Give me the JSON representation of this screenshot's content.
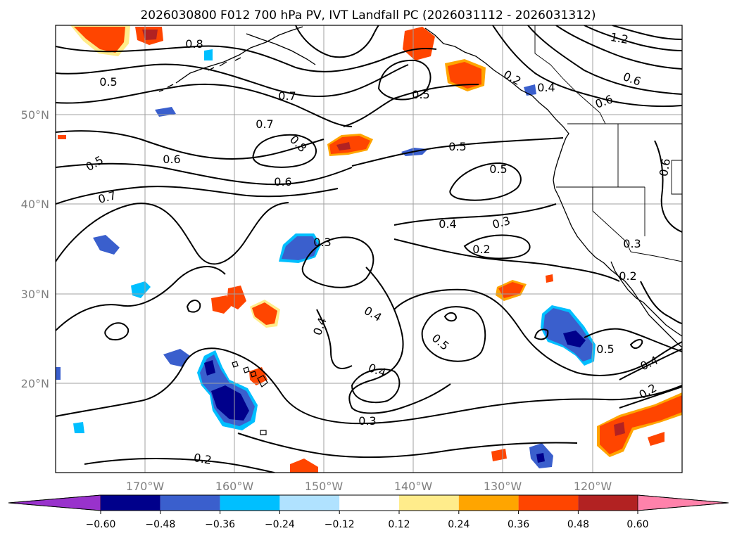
{
  "title": "2026030800 F012 700 hPa PV, IVT Landfall PC (2026031112 - 2026031312)",
  "map": {
    "lon_labels": [
      "170°W",
      "160°W",
      "150°W",
      "140°W",
      "130°W",
      "120°W"
    ],
    "lat_labels": [
      "50°N",
      "40°N",
      "30°N",
      "20°N"
    ]
  },
  "colorbar": {
    "tick_labels": [
      "−0.60",
      "−0.48",
      "−0.36",
      "−0.24",
      "−0.12",
      "0.12",
      "0.24",
      "0.36",
      "0.48",
      "0.60"
    ],
    "colors": [
      "#9932CC",
      "#00008B",
      "#3A5FCD",
      "#00BFFF",
      "#B0E2FF",
      "#FFFFFF",
      "#FFEC8B",
      "#FFA500",
      "#FF4500",
      "#B22222",
      "#FF82AB"
    ],
    "extend": "both"
  },
  "contour_labels": [
    {
      "text": "0.8"
    },
    {
      "text": "0.5"
    },
    {
      "text": "0.7"
    },
    {
      "text": "0.7"
    },
    {
      "text": "0.8"
    },
    {
      "text": "0.6"
    },
    {
      "text": "0.5"
    },
    {
      "text": "0.7"
    },
    {
      "text": "0.6"
    },
    {
      "text": "0.5"
    },
    {
      "text": "0.5"
    },
    {
      "text": "0.5"
    },
    {
      "text": "0.4"
    },
    {
      "text": "0.3"
    },
    {
      "text": "0.2"
    },
    {
      "text": "0.3"
    },
    {
      "text": "0.4"
    },
    {
      "text": "0.4"
    },
    {
      "text": "0.5"
    },
    {
      "text": "0.4"
    },
    {
      "text": "0.3"
    },
    {
      "text": "0.2"
    },
    {
      "text": "0.5"
    },
    {
      "text": "0.4"
    },
    {
      "text": "0.2"
    },
    {
      "text": "0.3"
    },
    {
      "text": "0.2"
    },
    {
      "text": "0.6"
    },
    {
      "text": "0.6"
    },
    {
      "text": "1.2"
    },
    {
      "text": "0.4"
    },
    {
      "text": "0.6"
    },
    {
      "text": "0.2"
    }
  ]
}
